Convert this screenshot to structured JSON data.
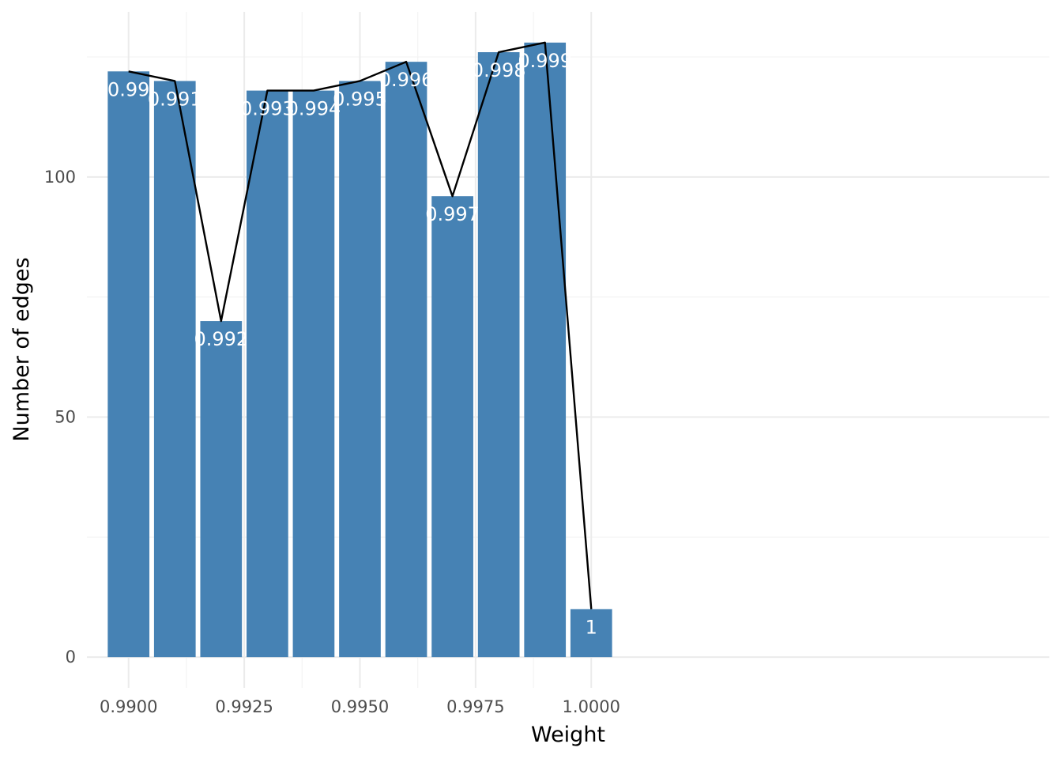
{
  "chart_data": {
    "type": "bar",
    "xlabel": "Weight",
    "ylabel": "Number of edges",
    "x": [
      0.99,
      0.991,
      0.992,
      0.993,
      0.994,
      0.995,
      0.996,
      0.997,
      0.998,
      0.999,
      1.0
    ],
    "values": [
      122,
      120,
      70,
      118,
      118,
      120,
      124,
      96,
      126,
      128,
      10
    ],
    "data_labels": [
      "0.99",
      "0.991",
      "0.992",
      "0.993",
      "0.994",
      "0.995",
      "0.996",
      "0.997",
      "0.998",
      "0.999",
      "1"
    ],
    "xlim": [
      0.9891,
      1.0099
    ],
    "ylim": [
      -6.4,
      134.4
    ],
    "x_ticks": [
      0.99,
      0.9925,
      0.995,
      0.9975,
      1.0
    ],
    "x_tick_labels": [
      "0.9900",
      "0.9925",
      "0.9950",
      "0.9975",
      "1.0000"
    ],
    "y_ticks": [
      0,
      50,
      100
    ],
    "y_tick_labels": [
      "0",
      "50",
      "100"
    ],
    "x_minor_ticks": [
      0.99125,
      0.99375,
      0.99625,
      0.99875
    ],
    "y_minor_ticks": [
      25,
      75,
      125
    ],
    "bar_width": 0.0009,
    "overlay": "line through bar tops",
    "grid": true,
    "legend": "none",
    "colors": {
      "bar": "#4682b4",
      "line": "#000000",
      "label": "#ffffff",
      "grid": "#ebebeb"
    }
  }
}
